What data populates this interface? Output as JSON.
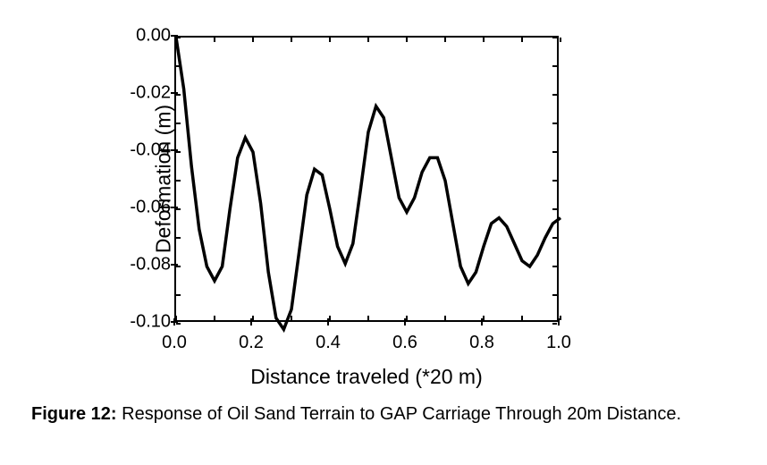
{
  "chart": {
    "type": "line",
    "title": "",
    "xlabel": "Distance traveled (*20 m)",
    "ylabel": "Deformation (m)",
    "xlim": [
      0.0,
      1.0
    ],
    "ylim": [
      -0.1,
      0.0
    ],
    "xtick_step": 0.2,
    "ytick_step": 0.02,
    "xticks": [
      "0.0",
      "0.2",
      "0.4",
      "0.6",
      "0.8",
      "1.0"
    ],
    "yticks": [
      "0.00",
      "-0.02",
      "-0.04",
      "-0.06",
      "-0.08",
      "-0.10"
    ],
    "ytick_values": [
      0.0,
      -0.02,
      -0.04,
      -0.06,
      -0.08,
      -0.1
    ],
    "xtick_values": [
      0.0,
      0.2,
      0.4,
      0.6,
      0.8,
      1.0
    ],
    "minor_ticks": true,
    "background_color": "#ffffff",
    "border_color": "#000000",
    "line_color": "#000000",
    "line_width": 3.5,
    "axis_fontsize": 20,
    "label_fontsize": 23,
    "data": [
      [
        0.0,
        0.0
      ],
      [
        0.02,
        -0.018
      ],
      [
        0.04,
        -0.045
      ],
      [
        0.06,
        -0.067
      ],
      [
        0.08,
        -0.08
      ],
      [
        0.1,
        -0.085
      ],
      [
        0.12,
        -0.08
      ],
      [
        0.14,
        -0.06
      ],
      [
        0.16,
        -0.042
      ],
      [
        0.18,
        -0.035
      ],
      [
        0.2,
        -0.04
      ],
      [
        0.22,
        -0.058
      ],
      [
        0.24,
        -0.082
      ],
      [
        0.26,
        -0.098
      ],
      [
        0.28,
        -0.102
      ],
      [
        0.3,
        -0.095
      ],
      [
        0.32,
        -0.075
      ],
      [
        0.34,
        -0.055
      ],
      [
        0.36,
        -0.046
      ],
      [
        0.38,
        -0.048
      ],
      [
        0.4,
        -0.06
      ],
      [
        0.42,
        -0.073
      ],
      [
        0.44,
        -0.079
      ],
      [
        0.46,
        -0.072
      ],
      [
        0.48,
        -0.053
      ],
      [
        0.5,
        -0.033
      ],
      [
        0.52,
        -0.024
      ],
      [
        0.54,
        -0.028
      ],
      [
        0.56,
        -0.042
      ],
      [
        0.58,
        -0.056
      ],
      [
        0.6,
        -0.061
      ],
      [
        0.62,
        -0.056
      ],
      [
        0.64,
        -0.047
      ],
      [
        0.66,
        -0.042
      ],
      [
        0.68,
        -0.042
      ],
      [
        0.7,
        -0.05
      ],
      [
        0.72,
        -0.065
      ],
      [
        0.74,
        -0.08
      ],
      [
        0.76,
        -0.086
      ],
      [
        0.78,
        -0.082
      ],
      [
        0.8,
        -0.073
      ],
      [
        0.82,
        -0.065
      ],
      [
        0.84,
        -0.063
      ],
      [
        0.86,
        -0.066
      ],
      [
        0.88,
        -0.072
      ],
      [
        0.9,
        -0.078
      ],
      [
        0.92,
        -0.08
      ],
      [
        0.94,
        -0.076
      ],
      [
        0.96,
        -0.07
      ],
      [
        0.98,
        -0.065
      ],
      [
        1.0,
        -0.063
      ]
    ]
  },
  "caption": {
    "label": "Figure 12:",
    "text": "Response of Oil Sand Terrain to GAP Carriage Through 20m Distance.",
    "fontsize": 20,
    "bold_label": true
  }
}
